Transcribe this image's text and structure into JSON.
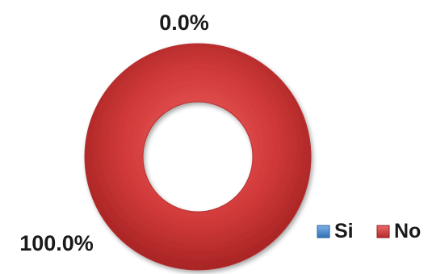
{
  "chart_data": {
    "type": "pie",
    "variant": "donut",
    "categories": [
      "Si",
      "No"
    ],
    "values": [
      0.0,
      100.0
    ],
    "data_labels": [
      "0.0%",
      "100.0%"
    ],
    "colors": [
      "#4a86c8",
      "#c0392b"
    ],
    "legend": {
      "position": "bottom-right",
      "entries": [
        "Si",
        "No"
      ]
    }
  }
}
